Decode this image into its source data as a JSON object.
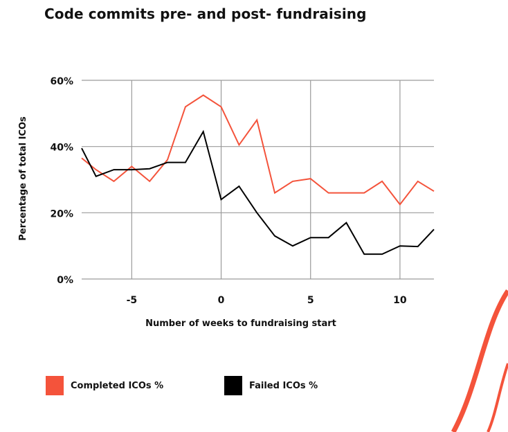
{
  "title": "Code commits pre- and post- fundraising",
  "colors": {
    "completed": "#f4533b",
    "failed": "#000000",
    "grid": "#9a9a9a",
    "decor": "#f4533b"
  },
  "legend": [
    {
      "label": "Completed ICOs %",
      "color": "#f4533b"
    },
    {
      "label": "Failed ICOs %",
      "color": "#000000"
    }
  ],
  "chart_data": {
    "type": "line",
    "title": "Code commits pre- and post- fundraising",
    "xlabel": "Number of weeks to fundraising start",
    "ylabel": "Percentage of total ICOs",
    "xlim": [
      -7.8,
      11.9
    ],
    "ylim": [
      0,
      60
    ],
    "xticks": [
      -5,
      0,
      5,
      10
    ],
    "xtick_labels": [
      "-5",
      "0",
      "5",
      "10"
    ],
    "yticks": [
      0,
      20,
      40,
      60
    ],
    "ytick_labels": [
      "0%",
      "20%",
      "40%",
      "60%"
    ],
    "grid": true,
    "legend_position": "bottom",
    "series": [
      {
        "name": "Completed ICOs %",
        "color": "#f4533b",
        "x": [
          -7.8,
          -7,
          -6,
          -5,
          -4,
          -3,
          -2,
          -1,
          0,
          1,
          2,
          3,
          4,
          5,
          6,
          7,
          8,
          9,
          10,
          11,
          11.9
        ],
        "y": [
          36.5,
          33,
          29.5,
          34,
          29.5,
          36,
          52,
          55.5,
          52,
          40.5,
          48,
          26,
          29.5,
          30.3,
          26,
          26,
          26,
          29.5,
          22.5,
          29.5,
          26.5
        ]
      },
      {
        "name": "Failed ICOs %",
        "color": "#000000",
        "x": [
          -7.8,
          -7,
          -6,
          -5,
          -4,
          -3,
          -2,
          -1,
          0,
          1,
          2,
          3,
          4,
          5,
          6,
          7,
          8,
          9,
          10,
          11,
          11.9
        ],
        "y": [
          39.5,
          31,
          33,
          33,
          33.3,
          35.2,
          35.2,
          44.5,
          24,
          28,
          20,
          13,
          10,
          12.5,
          12.5,
          17,
          7.5,
          7.5,
          10,
          9.8,
          15
        ]
      }
    ]
  }
}
